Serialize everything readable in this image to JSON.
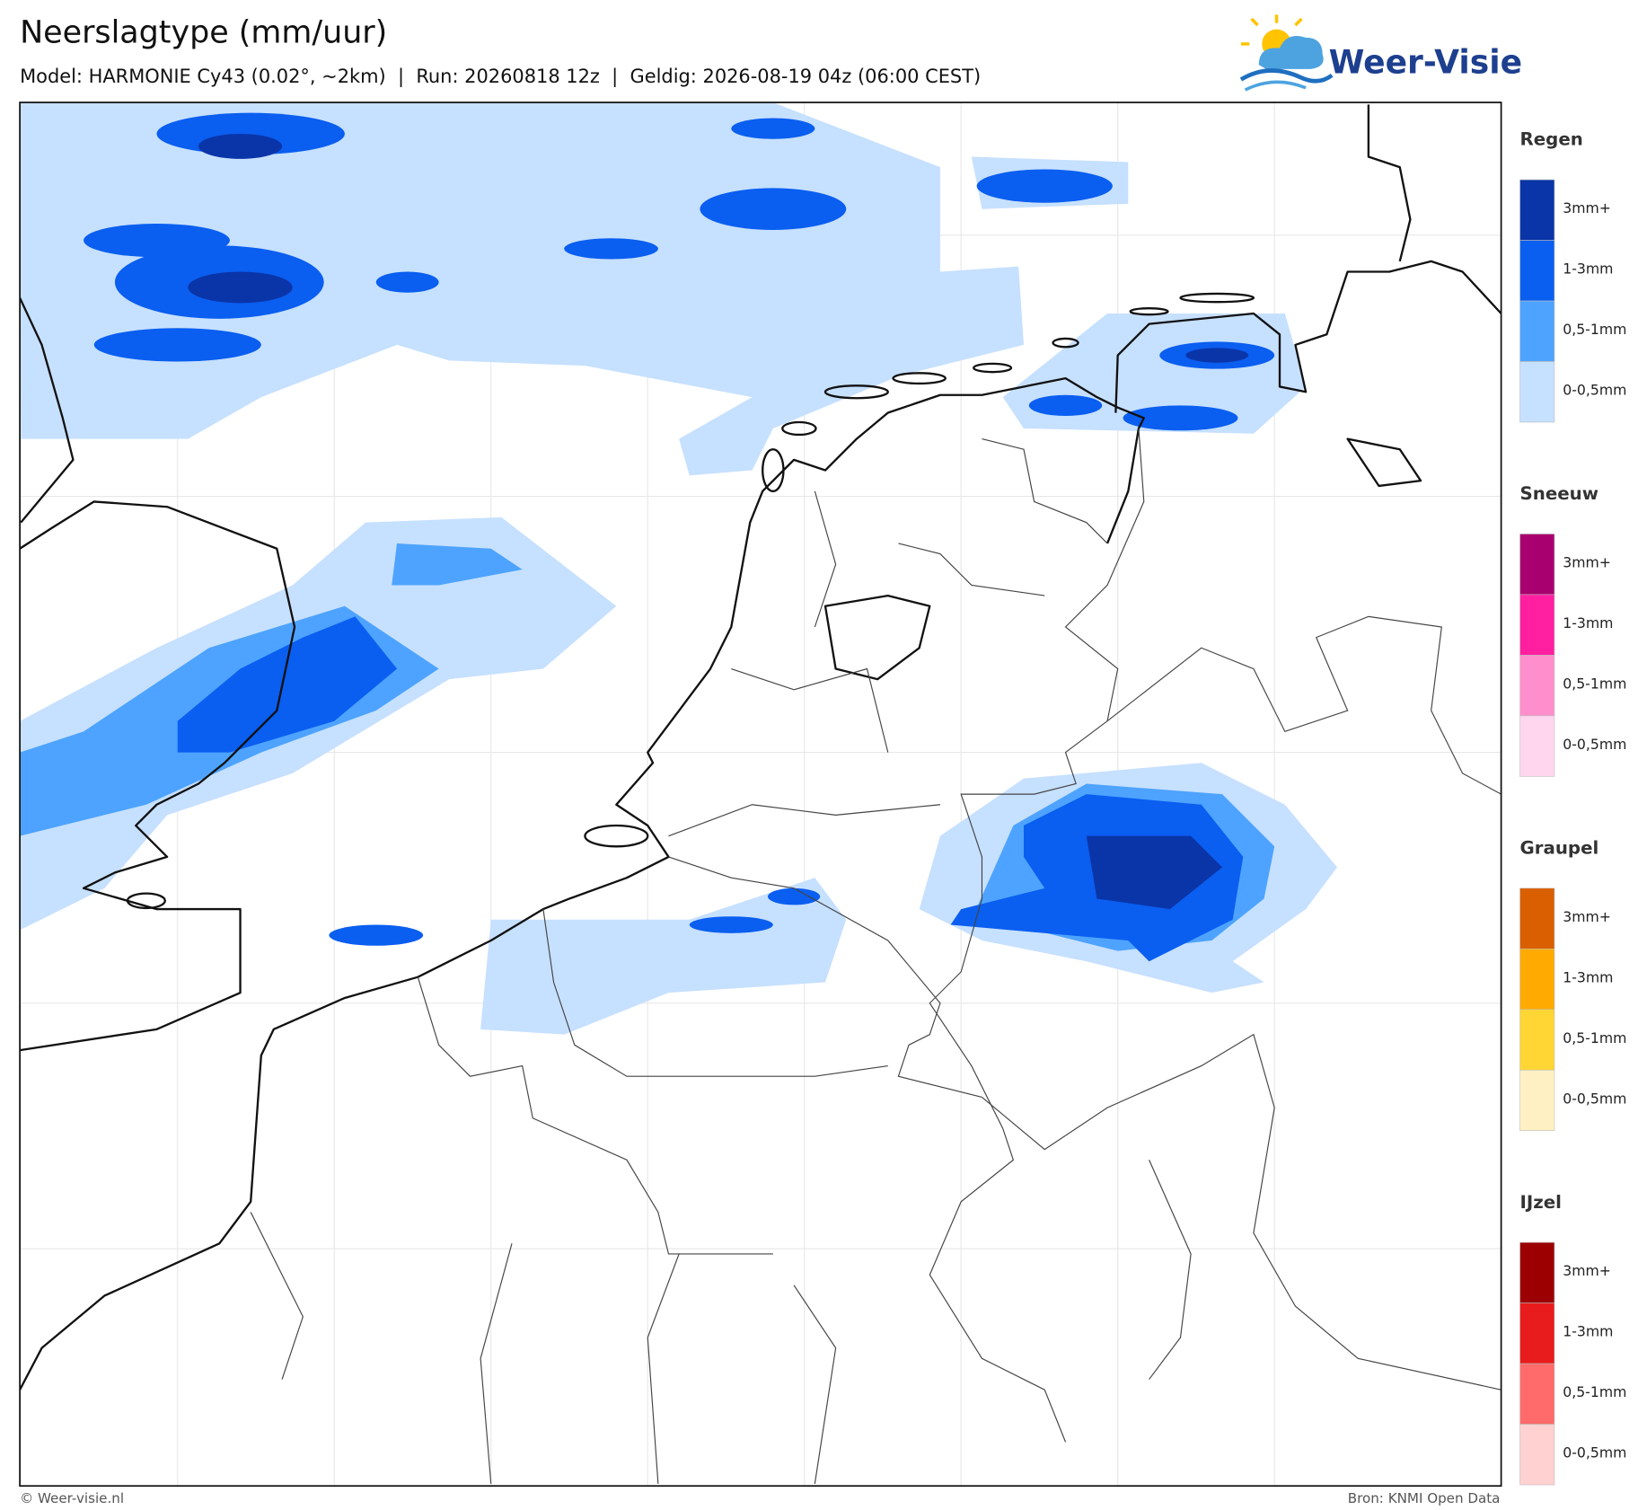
{
  "header": {
    "title": "Neerslagtype (mm/uur)",
    "subtitle": "Model: HARMONIE Cy43 (0.02°, ~2km)  |  Run: 20260818 12z  |  Geldig: 2026-08-19 04z (06:00 CEST)"
  },
  "logo": {
    "text": "Weer-Visie"
  },
  "legend": [
    {
      "title": "Regen",
      "items": [
        {
          "label": "3mm+",
          "color": "#0a35a8"
        },
        {
          "label": "1-3mm",
          "color": "#0a5ef0"
        },
        {
          "label": "0,5-1mm",
          "color": "#4da3ff"
        },
        {
          "label": "0-0,5mm",
          "color": "#c6e0ff"
        }
      ]
    },
    {
      "title": "Sneeuw",
      "items": [
        {
          "label": "3mm+",
          "color": "#a8006e"
        },
        {
          "label": "1-3mm",
          "color": "#ff1fa0"
        },
        {
          "label": "0,5-1mm",
          "color": "#ff8fcc"
        },
        {
          "label": "0-0,5mm",
          "color": "#ffd6ee"
        }
      ]
    },
    {
      "title": "Graupel",
      "items": [
        {
          "label": "3mm+",
          "color": "#d95f00"
        },
        {
          "label": "1-3mm",
          "color": "#ffaa00"
        },
        {
          "label": "0,5-1mm",
          "color": "#ffd633"
        },
        {
          "label": "0-0,5mm",
          "color": "#fff0c4"
        }
      ]
    },
    {
      "title": "IJzel",
      "items": [
        {
          "label": "3mm+",
          "color": "#9c0000"
        },
        {
          "label": "1-3mm",
          "color": "#e81c1c"
        },
        {
          "label": "0,5-1mm",
          "color": "#ff6b6b"
        },
        {
          "label": "0-0,5mm",
          "color": "#ffd1d1"
        }
      ]
    }
  ],
  "footer": {
    "left": "© Weer-visie.nl",
    "right": "Bron: KNMI Open Data"
  }
}
